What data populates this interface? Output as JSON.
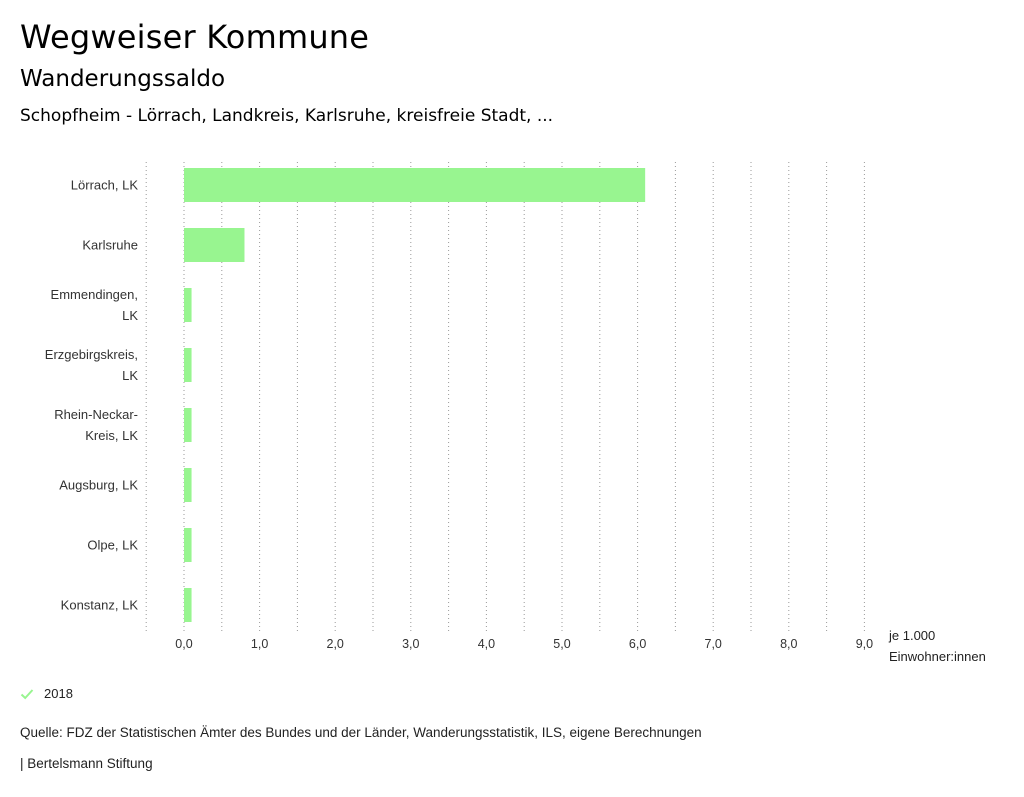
{
  "header": {
    "title": "Wegweiser Kommune",
    "subtitle": "Wanderungssaldo",
    "regions": "Schopfheim - Lörrach, Landkreis, Karlsruhe, kreisfreie Stadt, ..."
  },
  "unit_line1": "je 1.000",
  "unit_line2": "Einwohner:innen",
  "legend": {
    "label": "2018",
    "check_icon": "check-icon"
  },
  "source": "Quelle: FDZ der Statistischen Ämter des Bundes und der Länder, Wanderungsstatistik, ILS, eigene Berechnungen",
  "credit": "| Bertelsmann Stiftung",
  "colors": {
    "bar": "#98f590",
    "grid": "#9a9a9a",
    "check": "#98f590"
  },
  "chart_data": {
    "type": "bar",
    "orientation": "horizontal",
    "categories": [
      [
        "Lörrach, LK"
      ],
      [
        "Karlsruhe"
      ],
      [
        "Emmendingen,",
        "LK"
      ],
      [
        "Erzgebirgskreis,",
        "LK"
      ],
      [
        "Rhein-Neckar-",
        "Kreis, LK"
      ],
      [
        "Augsburg, LK"
      ],
      [
        "Olpe, LK"
      ],
      [
        "Konstanz, LK"
      ]
    ],
    "series": [
      {
        "name": "2018",
        "values": [
          6.1,
          0.8,
          0.1,
          0.1,
          0.1,
          0.1,
          0.1,
          0.1
        ]
      }
    ],
    "xlim": [
      -0.5,
      9.0
    ],
    "xticks": [
      0,
      1,
      2,
      3,
      4,
      5,
      6,
      7,
      8,
      9
    ],
    "xtick_labels": [
      "0,0",
      "1,0",
      "2,0",
      "3,0",
      "4,0",
      "5,0",
      "6,0",
      "7,0",
      "8,0",
      "9,0"
    ],
    "grid": true,
    "legend_position": "bottom-left"
  }
}
